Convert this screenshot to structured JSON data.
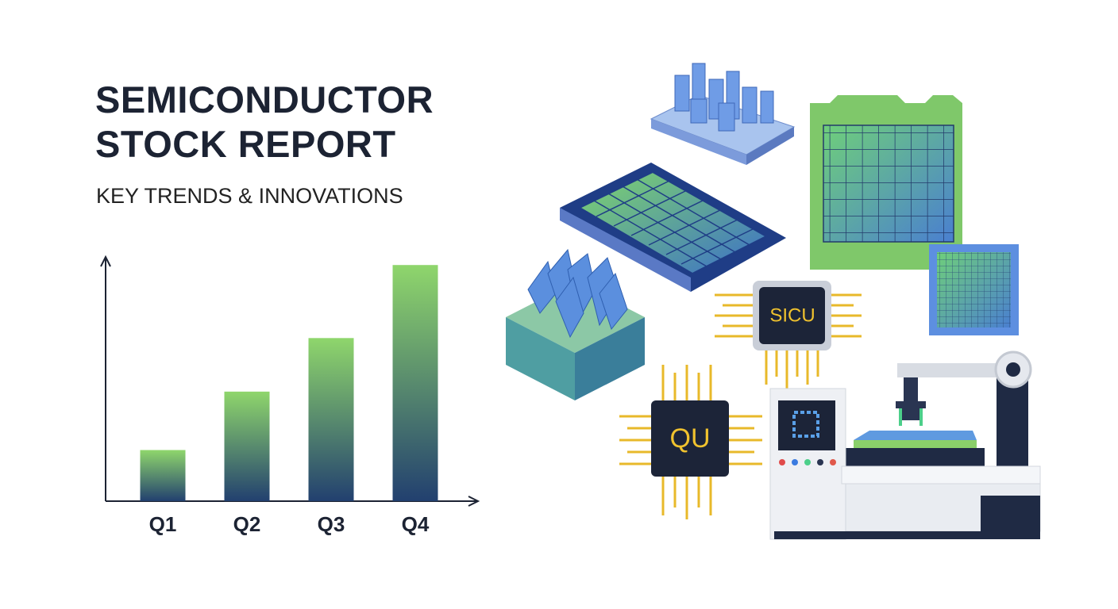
{
  "header": {
    "title": "SEMICONDUCTOR STOCK REPORT",
    "subtitle": "KEY TRENDS & INNOVATIONS"
  },
  "chart_data": {
    "type": "bar",
    "categories": [
      "Q1",
      "Q2",
      "Q3",
      "Q4"
    ],
    "values": [
      21,
      45,
      67,
      97
    ],
    "gradient": [
      "#8fd66c",
      "#22406f"
    ],
    "ylim": [
      0,
      100
    ]
  },
  "illustration": {
    "chips": [
      "SICU",
      "QU"
    ]
  }
}
